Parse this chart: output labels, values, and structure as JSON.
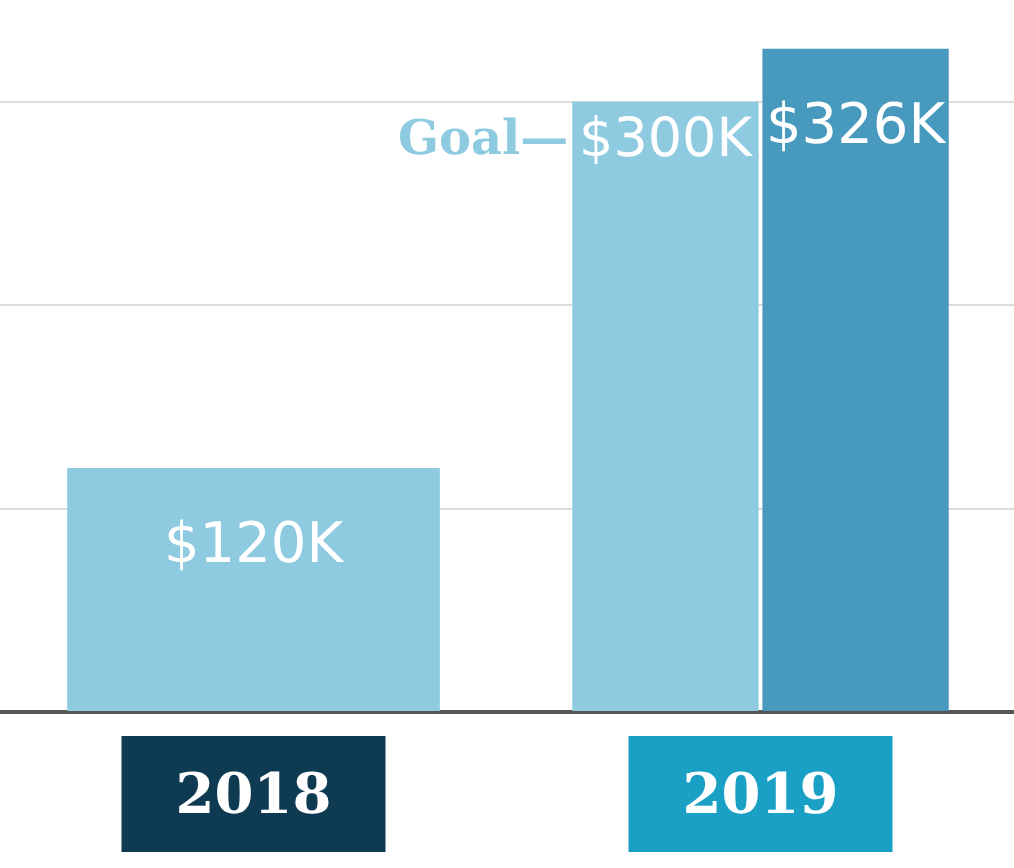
{
  "chart_data": {
    "type": "bar",
    "categories": [
      "2018",
      "2019"
    ],
    "series": [
      {
        "color": "#8ecae0",
        "values": [
          120,
          300
        ],
        "value_labels": [
          "$120K",
          "$300K"
        ]
      },
      {
        "color": "#4799bd",
        "values": [
          null,
          326
        ],
        "value_labels": [
          null,
          "$326K"
        ]
      }
    ],
    "annotations": [
      "Goal—"
    ],
    "yticks": [
      {
        "value": 0,
        "label": null
      },
      {
        "value": 100,
        "label": null
      },
      {
        "value": 200,
        "label": null
      },
      {
        "value": 300,
        "label": null
      }
    ],
    "grid": "y",
    "tick_labels": "x",
    "legend": false
  }
}
